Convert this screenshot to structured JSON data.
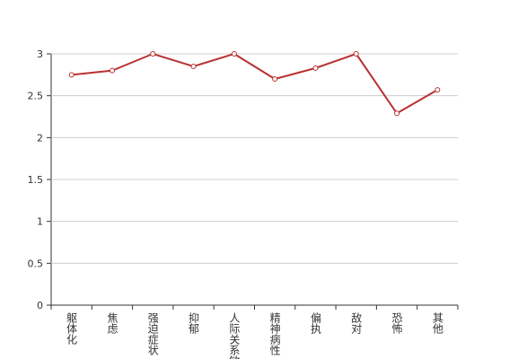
{
  "chart_data": {
    "type": "line",
    "categories": [
      "躯体化",
      "焦虑",
      "强迫症状",
      "抑郁",
      "人际关系敏感",
      "精神病性",
      "偏执",
      "敌对",
      "恐怖",
      "其他"
    ],
    "series": [
      {
        "color": "#b83232",
        "values": [
          2.75,
          2.8,
          3.0,
          2.85,
          3.0,
          2.7,
          2.83,
          3.0,
          2.29,
          2.57
        ]
      }
    ],
    "ylim": [
      0,
      3
    ],
    "yticks": [
      0,
      0.5,
      1,
      1.5,
      2,
      2.5,
      3
    ],
    "grid": true
  }
}
